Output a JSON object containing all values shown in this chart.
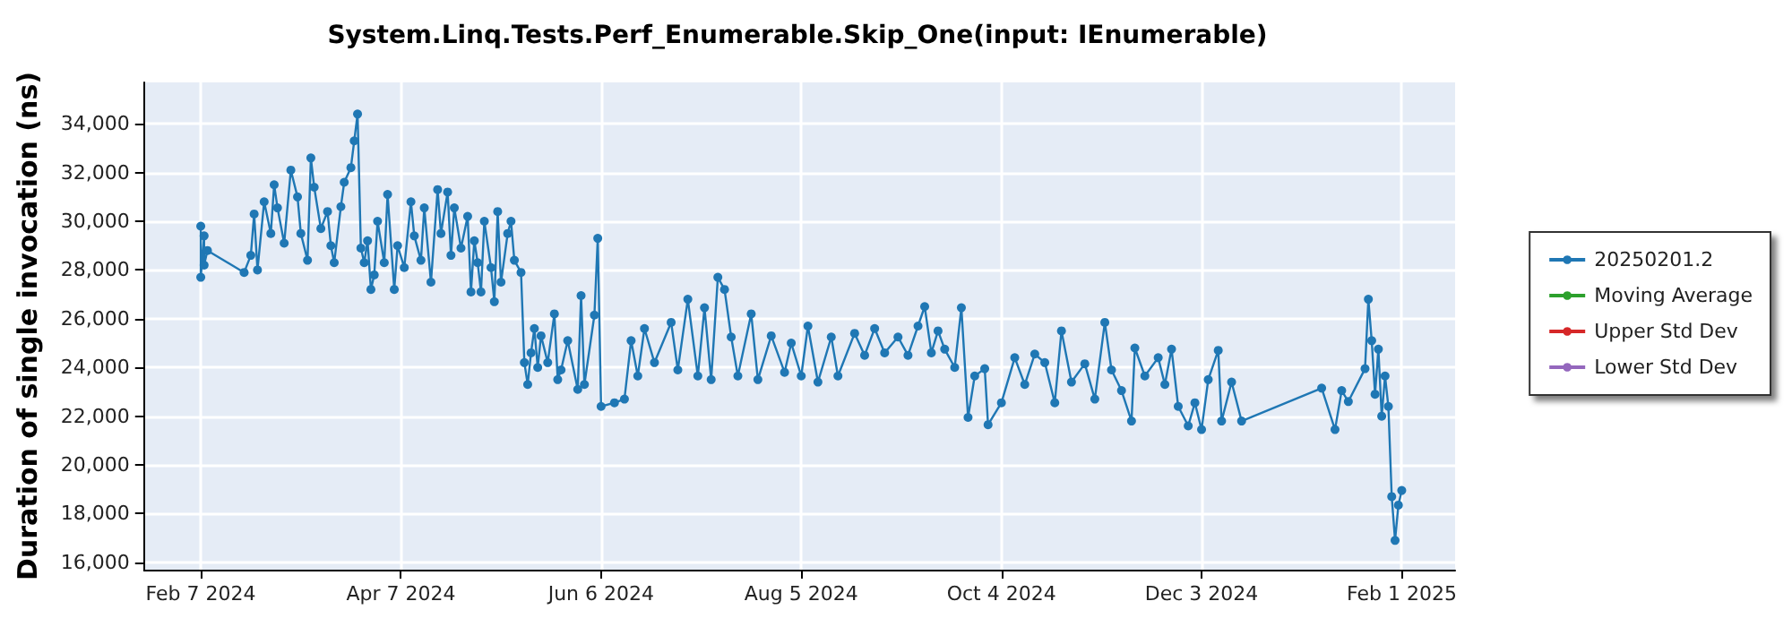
{
  "chart_data": {
    "type": "line",
    "title": "System.Linq.Tests.Perf_Enumerable.Skip_One(input: IEnumerable)",
    "ylabel": "Duration of single invocation (ns)",
    "x": [
      "2024-02-07",
      "2024-02-07",
      "2024-02-08",
      "2024-02-08",
      "2024-02-09",
      "2024-02-20",
      "2024-02-22",
      "2024-02-23",
      "2024-02-24",
      "2024-02-26",
      "2024-02-28",
      "2024-02-29",
      "2024-03-01",
      "2024-03-03",
      "2024-03-05",
      "2024-03-07",
      "2024-03-08",
      "2024-03-10",
      "2024-03-11",
      "2024-03-12",
      "2024-03-14",
      "2024-03-16",
      "2024-03-17",
      "2024-03-18",
      "2024-03-20",
      "2024-03-21",
      "2024-03-23",
      "2024-03-24",
      "2024-03-25",
      "2024-03-26",
      "2024-03-27",
      "2024-03-28",
      "2024-03-29",
      "2024-03-30",
      "2024-03-31",
      "2024-04-02",
      "2024-04-03",
      "2024-04-05",
      "2024-04-06",
      "2024-04-08",
      "2024-04-10",
      "2024-04-11",
      "2024-04-13",
      "2024-04-14",
      "2024-04-16",
      "2024-04-18",
      "2024-04-19",
      "2024-04-21",
      "2024-04-22",
      "2024-04-23",
      "2024-04-25",
      "2024-04-27",
      "2024-04-28",
      "2024-04-29",
      "2024-04-30",
      "2024-05-01",
      "2024-05-02",
      "2024-05-04",
      "2024-05-05",
      "2024-05-06",
      "2024-05-07",
      "2024-05-09",
      "2024-05-10",
      "2024-05-11",
      "2024-05-13",
      "2024-05-14",
      "2024-05-15",
      "2024-05-16",
      "2024-05-17",
      "2024-05-18",
      "2024-05-19",
      "2024-05-21",
      "2024-05-23",
      "2024-05-24",
      "2024-05-25",
      "2024-05-27",
      "2024-05-30",
      "2024-05-31",
      "2024-06-01",
      "2024-06-04",
      "2024-06-05",
      "2024-06-06",
      "2024-06-10",
      "2024-06-13",
      "2024-06-15",
      "2024-06-17",
      "2024-06-19",
      "2024-06-22",
      "2024-06-27",
      "2024-06-29",
      "2024-07-02",
      "2024-07-05",
      "2024-07-07",
      "2024-07-09",
      "2024-07-11",
      "2024-07-13",
      "2024-07-15",
      "2024-07-17",
      "2024-07-21",
      "2024-07-23",
      "2024-07-27",
      "2024-07-31",
      "2024-08-02",
      "2024-08-05",
      "2024-08-07",
      "2024-08-10",
      "2024-08-14",
      "2024-08-16",
      "2024-08-21",
      "2024-08-24",
      "2024-08-27",
      "2024-08-30",
      "2024-09-03",
      "2024-09-06",
      "2024-09-09",
      "2024-09-11",
      "2024-09-13",
      "2024-09-15",
      "2024-09-17",
      "2024-09-20",
      "2024-09-22",
      "2024-09-24",
      "2024-09-26",
      "2024-09-29",
      "2024-09-30",
      "2024-10-04",
      "2024-10-08",
      "2024-10-11",
      "2024-10-14",
      "2024-10-17",
      "2024-10-20",
      "2024-10-22",
      "2024-10-25",
      "2024-10-29",
      "2024-11-01",
      "2024-11-04",
      "2024-11-06",
      "2024-11-09",
      "2024-11-12",
      "2024-11-13",
      "2024-11-16",
      "2024-11-20",
      "2024-11-22",
      "2024-11-24",
      "2024-11-26",
      "2024-11-29",
      "2024-12-01",
      "2024-12-03",
      "2024-12-05",
      "2024-12-08",
      "2024-12-09",
      "2024-12-12",
      "2024-12-15",
      "2025-01-08",
      "2025-01-12",
      "2025-01-14",
      "2025-01-16",
      "2025-01-21",
      "2025-01-22",
      "2025-01-23",
      "2025-01-24",
      "2025-01-25",
      "2025-01-26",
      "2025-01-27",
      "2025-01-28",
      "2025-01-29",
      "2025-01-30",
      "2025-01-31",
      "2025-02-01"
    ],
    "series": [
      {
        "name": "20250201.2",
        "color": "#1f77b4",
        "values": [
          29800,
          27700,
          29400,
          28200,
          28800,
          27900,
          28600,
          30300,
          28000,
          30800,
          29500,
          31500,
          30550,
          29100,
          32100,
          31000,
          29500,
          28400,
          32600,
          31400,
          29700,
          30400,
          29000,
          28300,
          30600,
          31600,
          32200,
          33300,
          34400,
          28900,
          28300,
          29200,
          27200,
          27800,
          30000,
          28300,
          31100,
          27200,
          29000,
          28100,
          30800,
          29400,
          28400,
          30550,
          27500,
          31300,
          29500,
          31200,
          28600,
          30550,
          28900,
          30200,
          27100,
          29200,
          28300,
          27100,
          30000,
          28100,
          26700,
          30400,
          27500,
          29500,
          30000,
          28400,
          27900,
          24200,
          23300,
          24600,
          25600,
          24000,
          25300,
          24200,
          26200,
          23500,
          23900,
          25100,
          23100,
          26950,
          23300,
          26150,
          29300,
          22400,
          22550,
          22700,
          25100,
          23650,
          25600,
          24200,
          25850,
          23900,
          26800,
          23650,
          26450,
          23500,
          27700,
          27200,
          25250,
          23650,
          26200,
          23500,
          25300,
          23800,
          25000,
          23650,
          25700,
          23400,
          25250,
          23650,
          25400,
          24500,
          25600,
          24600,
          25250,
          24500,
          25700,
          26500,
          24600,
          25500,
          24750,
          24000,
          26450,
          21950,
          23650,
          23950,
          21650,
          22550,
          24400,
          23300,
          24550,
          24200,
          22550,
          25500,
          23400,
          24150,
          22700,
          25850,
          23900,
          23050,
          21800,
          24800,
          23650,
          24400,
          23300,
          24750,
          22400,
          21600,
          22550,
          21450,
          23500,
          24700,
          21800,
          23400,
          21800,
          23150,
          21450,
          23050,
          22600,
          23950,
          26800,
          25100,
          22900,
          24750,
          22000,
          23650,
          22400,
          18700,
          16900,
          18350,
          18950
        ]
      },
      {
        "name": "Moving Average",
        "color": "#2ca02c",
        "values": [
          null,
          null,
          null,
          null,
          null,
          null,
          null,
          null,
          null,
          null,
          null,
          null,
          null,
          null,
          null,
          null,
          null,
          null,
          null,
          null,
          null,
          null,
          null,
          null,
          null,
          null,
          null,
          null,
          null,
          null,
          null,
          null,
          null,
          null,
          null,
          null,
          null,
          null,
          null,
          null,
          null,
          null,
          null,
          null,
          null,
          null,
          null,
          null,
          null,
          null,
          null,
          null,
          null,
          null,
          null,
          null,
          null,
          null,
          null,
          null,
          null,
          null,
          null,
          null,
          null,
          null,
          null,
          null,
          null,
          null,
          null,
          null,
          null,
          null,
          null,
          null,
          null,
          null,
          null,
          null,
          null,
          null,
          null,
          null,
          null,
          null,
          null,
          null,
          null,
          null,
          null,
          null,
          null,
          null,
          null,
          null,
          null,
          null,
          null,
          null,
          null,
          null,
          null,
          null,
          null,
          null,
          null,
          null,
          null,
          null,
          null,
          null,
          null,
          null,
          null,
          null,
          null,
          null,
          null,
          null,
          null,
          null,
          null,
          null,
          null,
          null,
          null,
          null,
          null,
          null,
          null,
          null,
          null,
          null,
          null,
          null,
          null,
          null,
          null,
          null,
          null,
          null,
          null,
          null,
          null,
          null,
          null,
          null,
          null,
          null,
          null,
          null,
          null,
          null,
          null,
          null,
          null,
          null,
          null,
          null,
          null,
          null,
          null,
          null,
          null,
          null,
          null,
          null,
          null
        ]
      },
      {
        "name": "Upper Std Dev",
        "color": "#d62728",
        "values": [
          null,
          null,
          null,
          null,
          null,
          null,
          null,
          null,
          null,
          null,
          null,
          null,
          null,
          null,
          null,
          null,
          null,
          null,
          null,
          null,
          null,
          null,
          null,
          null,
          null,
          null,
          null,
          null,
          null,
          null,
          null,
          null,
          null,
          null,
          null,
          null,
          null,
          null,
          null,
          null,
          null,
          null,
          null,
          null,
          null,
          null,
          null,
          null,
          null,
          null,
          null,
          null,
          null,
          null,
          null,
          null,
          null,
          null,
          null,
          null,
          null,
          null,
          null,
          null,
          null,
          null,
          null,
          null,
          null,
          null,
          null,
          null,
          null,
          null,
          null,
          null,
          null,
          null,
          null,
          null,
          null,
          null,
          null,
          null,
          null,
          null,
          null,
          null,
          null,
          null,
          null,
          null,
          null,
          null,
          null,
          null,
          null,
          null,
          null,
          null,
          null,
          null,
          null,
          null,
          null,
          null,
          null,
          null,
          null,
          null,
          null,
          null,
          null,
          null,
          null,
          null,
          null,
          null,
          null,
          null,
          null,
          null,
          null,
          null,
          null,
          null,
          null,
          null,
          null,
          null,
          null,
          null,
          null,
          null,
          null,
          null,
          null,
          null,
          null,
          null,
          null,
          null,
          null,
          null,
          null,
          null,
          null,
          null,
          null,
          null,
          null,
          null,
          null,
          null,
          null,
          null,
          null,
          null,
          null,
          null,
          null,
          null,
          null,
          null,
          null,
          null,
          null,
          null,
          null
        ]
      },
      {
        "name": "Lower Std Dev",
        "color": "#9467bd",
        "values": [
          null,
          null,
          null,
          null,
          null,
          null,
          null,
          null,
          null,
          null,
          null,
          null,
          null,
          null,
          null,
          null,
          null,
          null,
          null,
          null,
          null,
          null,
          null,
          null,
          null,
          null,
          null,
          null,
          null,
          null,
          null,
          null,
          null,
          null,
          null,
          null,
          null,
          null,
          null,
          null,
          null,
          null,
          null,
          null,
          null,
          null,
          null,
          null,
          null,
          null,
          null,
          null,
          null,
          null,
          null,
          null,
          null,
          null,
          null,
          null,
          null,
          null,
          null,
          null,
          null,
          null,
          null,
          null,
          null,
          null,
          null,
          null,
          null,
          null,
          null,
          null,
          null,
          null,
          null,
          null,
          null,
          null,
          null,
          null,
          null,
          null,
          null,
          null,
          null,
          null,
          null,
          null,
          null,
          null,
          null,
          null,
          null,
          null,
          null,
          null,
          null,
          null,
          null,
          null,
          null,
          null,
          null,
          null,
          null,
          null,
          null,
          null,
          null,
          null,
          null,
          null,
          null,
          null,
          null,
          null,
          null,
          null,
          null,
          null,
          null,
          null,
          null,
          null,
          null,
          null,
          null,
          null,
          null,
          null,
          null,
          null,
          null,
          null,
          null,
          null,
          null,
          null,
          null,
          null,
          null,
          null,
          null,
          null,
          null,
          null,
          null,
          null,
          null,
          null,
          null,
          null,
          null,
          null,
          null,
          null,
          null,
          null,
          null,
          null,
          null,
          null,
          null,
          null,
          null
        ]
      }
    ],
    "xlim": [
      "2024-01-21",
      "2025-02-17"
    ],
    "xticks": [
      {
        "value": "2024-02-07",
        "label": "Feb 7 2024"
      },
      {
        "value": "2024-04-07",
        "label": "Apr 7 2024"
      },
      {
        "value": "2024-06-06",
        "label": "Jun 6 2024"
      },
      {
        "value": "2024-08-05",
        "label": "Aug 5 2024"
      },
      {
        "value": "2024-10-04",
        "label": "Oct 4 2024"
      },
      {
        "value": "2024-12-03",
        "label": "Dec 3 2024"
      },
      {
        "value": "2025-02-01",
        "label": "Feb 1 2025"
      }
    ],
    "ylim": [
      15700,
      35700
    ],
    "yticks": [
      {
        "value": 16000,
        "label": "16,000"
      },
      {
        "value": 18000,
        "label": "18,000"
      },
      {
        "value": 20000,
        "label": "20,000"
      },
      {
        "value": 22000,
        "label": "22,000"
      },
      {
        "value": 24000,
        "label": "24,000"
      },
      {
        "value": 26000,
        "label": "26,000"
      },
      {
        "value": 28000,
        "label": "28,000"
      },
      {
        "value": 30000,
        "label": "30,000"
      },
      {
        "value": 32000,
        "label": "32,000"
      },
      {
        "value": 34000,
        "label": "34,000"
      }
    ],
    "grid": true,
    "legend": "right",
    "marker": "circle",
    "line_style": "solid"
  }
}
